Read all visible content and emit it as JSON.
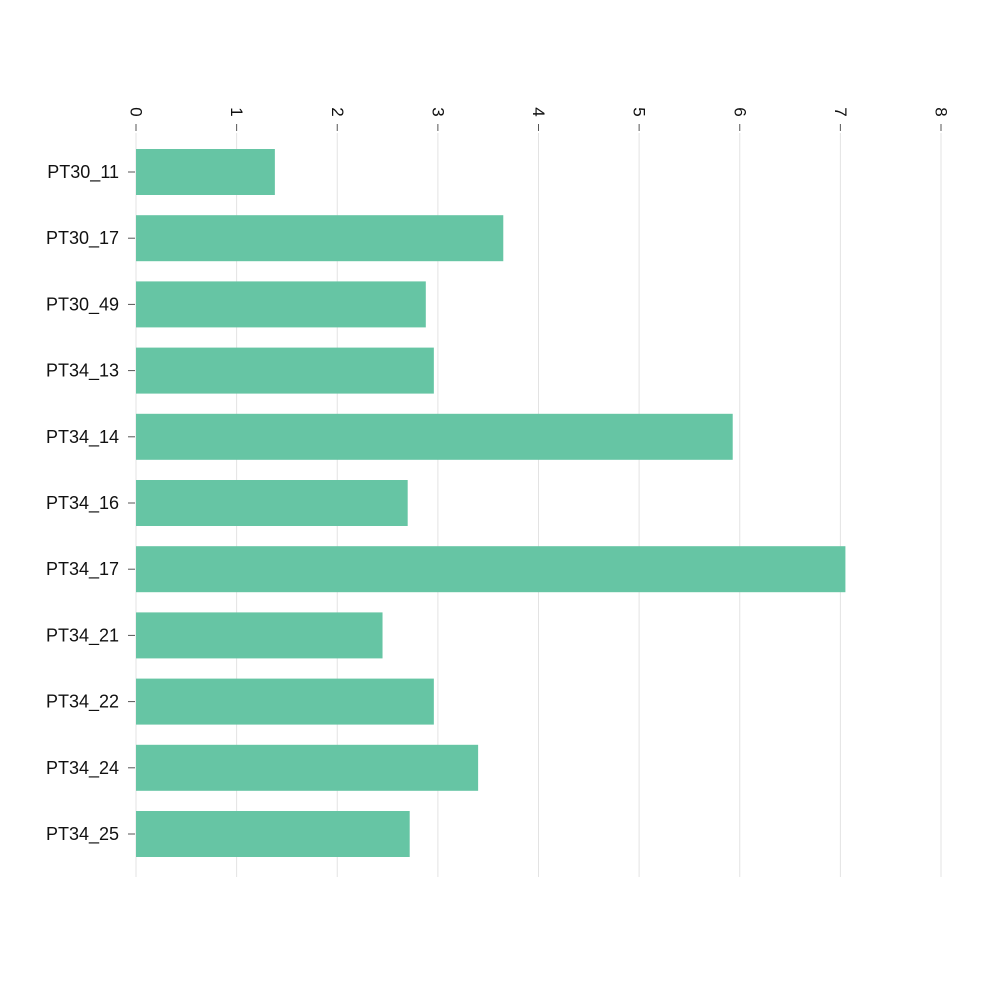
{
  "chart_data": {
    "type": "bar",
    "orientation": "horizontal",
    "categories": [
      "PT30_11",
      "PT30_17",
      "PT30_49",
      "PT34_13",
      "PT34_14",
      "PT34_16",
      "PT34_17",
      "PT34_21",
      "PT34_22",
      "PT34_24",
      "PT34_25"
    ],
    "values": [
      1.38,
      3.65,
      2.88,
      2.96,
      5.93,
      2.7,
      7.05,
      2.45,
      2.96,
      3.4,
      2.72
    ],
    "x_ticks": [
      "0",
      "1",
      "2",
      "3",
      "4",
      "5",
      "6",
      "7",
      "8"
    ],
    "xlim": [
      0,
      8
    ],
    "xlabel": "",
    "ylabel": "",
    "title": "",
    "grid": true,
    "x_axis_position": "top",
    "tick_label_rotation": "90",
    "colors": {
      "bar": "#66c5a4",
      "grid": "#e3e3e3",
      "tick": "#555555",
      "text": "#111111"
    }
  }
}
